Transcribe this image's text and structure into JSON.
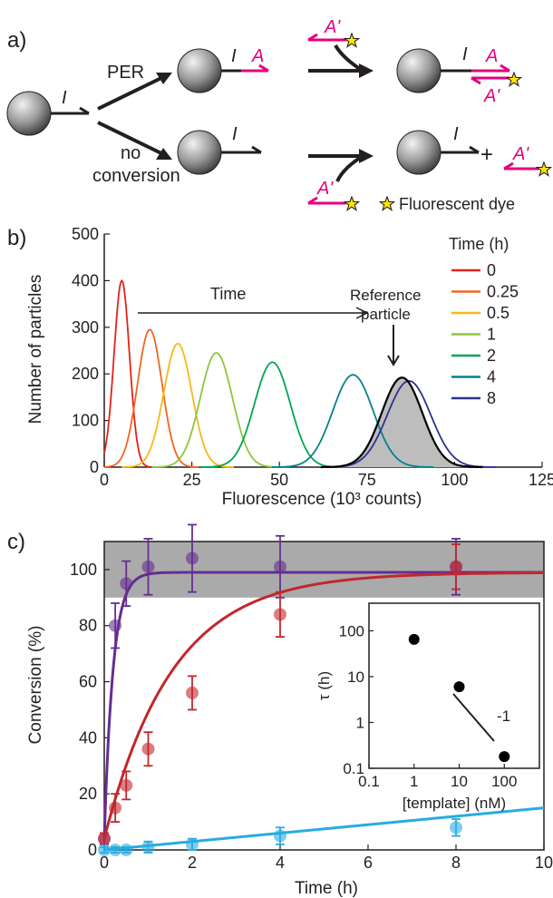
{
  "panel_a": {
    "label": "a)",
    "strand_initial": "I",
    "strand_product": "A",
    "strand_complement": "A'",
    "path_per": "PER",
    "path_no_conversion_1": "no",
    "path_no_conversion_2": "conversion",
    "plus_sign": "+",
    "legend_dye": "Fluorescent dye"
  },
  "colors": {
    "magenta": "#e6007e",
    "star": "#ffe600",
    "black": "#231f20",
    "shade": "#bdbdbd"
  },
  "chart_data": [
    {
      "panel_label": "b)",
      "type": "line",
      "xlabel": "Fluorescence (10³ counts)",
      "ylabel": "Number of particles",
      "xlim": [
        0,
        125
      ],
      "ylim": [
        0,
        500
      ],
      "x_ticks": [
        0,
        25,
        50,
        75,
        100,
        125
      ],
      "y_ticks": [
        0,
        100,
        200,
        300,
        400,
        500
      ],
      "legend_title": "Time (h)",
      "legend_placement": "top-right",
      "annotation_arrow": "Time",
      "annotation_reference_1": "Reference",
      "annotation_reference_2": "particle",
      "series": [
        {
          "name": "0",
          "color": "#e2231a",
          "center": 5,
          "peak": 400,
          "sigma": 2.2
        },
        {
          "name": "0.25",
          "color": "#f26522",
          "center": 13,
          "peak": 295,
          "sigma": 3.5
        },
        {
          "name": "0.5",
          "color": "#fbb617",
          "center": 21,
          "peak": 265,
          "sigma": 4.0
        },
        {
          "name": "1",
          "color": "#8dc63f",
          "center": 32,
          "peak": 245,
          "sigma": 4.6
        },
        {
          "name": "2",
          "color": "#00a651",
          "center": 48,
          "peak": 225,
          "sigma": 5.1
        },
        {
          "name": "4",
          "color": "#00838f",
          "center": 71,
          "peak": 198,
          "sigma": 5.8
        },
        {
          "name": "8",
          "color": "#2e3192",
          "center": 87,
          "peak": 185,
          "sigma": 6.2
        }
      ],
      "reference": {
        "name": "Reference particle",
        "center": 85,
        "peak": 192,
        "sigma": 5.8,
        "color": "#000000",
        "fill": "#bdbdbd"
      }
    },
    {
      "panel_label": "c)",
      "type": "scatter",
      "xlabel": "Time (h)",
      "ylabel": "Conversion (%)",
      "xlim": [
        0,
        10
      ],
      "ylim": [
        0,
        110
      ],
      "x_ticks": [
        0,
        2,
        4,
        6,
        8,
        10
      ],
      "y_ticks": [
        0,
        20,
        40,
        60,
        80,
        100
      ],
      "band": [
        90,
        110
      ],
      "series": [
        {
          "color": "#662d91",
          "x": [
            0,
            0.25,
            0.5,
            1,
            2,
            4,
            8
          ],
          "y": [
            4,
            80,
            95,
            101,
            104,
            101,
            101
          ],
          "err": [
            2,
            8,
            8,
            10,
            12,
            11,
            10
          ],
          "fit_tau": 0.2
        },
        {
          "color": "#c1272d",
          "x": [
            0,
            0.25,
            0.5,
            1,
            2,
            4,
            8
          ],
          "y": [
            4,
            15,
            23,
            36,
            56,
            84,
            101
          ],
          "err": [
            2,
            5,
            5,
            6,
            6,
            8,
            8
          ],
          "fit_tau": 1.55
        },
        {
          "color": "#29abe2",
          "x": [
            0,
            0.25,
            0.5,
            1,
            2,
            4,
            8
          ],
          "y": [
            0,
            0,
            0,
            1,
            2,
            5,
            8
          ],
          "err": [
            1,
            1,
            1,
            2,
            2,
            3,
            3
          ],
          "fit_slope": 1.5
        }
      ],
      "inset": {
        "type": "scatter",
        "xlabel": "[template] (nM)",
        "ylabel": "τ (h)",
        "x_ticks": [
          "0.1",
          "1",
          "10",
          "100"
        ],
        "y_ticks": [
          "0.1",
          "1",
          "10",
          "100"
        ],
        "x": [
          1,
          10,
          100
        ],
        "y": [
          65,
          6,
          0.18
        ],
        "slope_label": "-1"
      }
    }
  ]
}
